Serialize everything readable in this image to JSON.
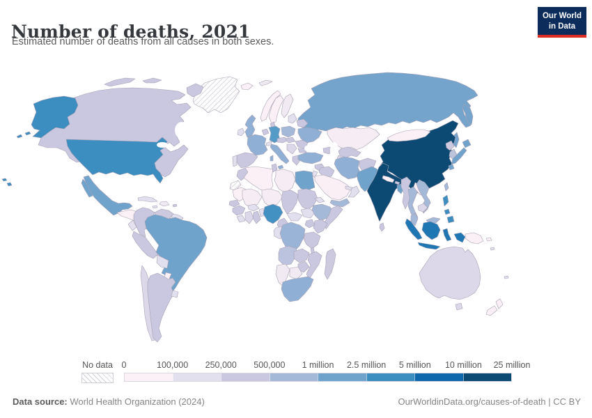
{
  "header": {
    "title": "Number of deaths, 2021",
    "subtitle": "Estimated number of deaths from all causes in both sexes.",
    "logo": {
      "line1": "Our World",
      "line2": "in Data",
      "bg_color": "#0c2d5b",
      "accent_color": "#dc2e27"
    }
  },
  "legend": {
    "no_data_label": "No data",
    "tick_labels": [
      "0",
      "100,000",
      "250,000",
      "500,000",
      "1 million",
      "2.5 million",
      "5 million",
      "10 million",
      "25 million"
    ],
    "bin_colors": [
      "#fcf1f7",
      "#e2dfee",
      "#c9c8e0",
      "#a4b8d8",
      "#6fa3cb",
      "#3d8ec0",
      "#0f68ac",
      "#0c4a74"
    ]
  },
  "footer": {
    "datasource_label": "Data source:",
    "datasource_value": " World Health Organization (2024)",
    "credit": "OurWorldinData.org/causes-of-death | CC BY"
  },
  "map": {
    "border_color": "#a79fb2",
    "ocean_color": "#ffffff",
    "region_fills": {
      "greenland": "no-data",
      "western-sahara": "no-data",
      "canada": "#c9c8e0",
      "usa": "#3d8ec0",
      "mexico": "#6fa3cb",
      "central-america": "#fbf0f6",
      "cuba": "#e2dfee",
      "hispaniola": "#efe9f2",
      "jamaica": "#e2dfee",
      "puerto-rico": "#c9c8e0",
      "colombia": "#c9c8e0",
      "venezuela": "#cdcadf",
      "guyanas": "#e2dfee",
      "ecuador": "#e6e1ee",
      "peru": "#c9c8e0",
      "brazil": "#6fa3cb",
      "bolivia": "#e2dfee",
      "paraguay": "#fbf0f6",
      "chile": "#dcd8e9",
      "argentina": "#c9c8e0",
      "uruguay": "#e2dfee",
      "iceland": "#fbf0f6",
      "svalbard": "#eee9f0",
      "norway": "#fbf0f6",
      "sweden": "#fbf0f6",
      "finland": "#f2eaf2",
      "denmark": "#c9c8e0",
      "uk": "#8fb0d4",
      "ireland": "#e2dfee",
      "benelux": "#c9c8e0",
      "germany": "#559bc8",
      "france": "#8fb0d4",
      "spain": "#c9c8e0",
      "portugal": "#e2dfee",
      "italy": "#8fb0d4",
      "switzerland": "#e2dfee",
      "austria-czech": "#c9c8e0",
      "poland": "#a4b8d8",
      "baltics": "#e2dfee",
      "belarus": "#c9c8e0",
      "ukraine": "#8fb0d4",
      "romania": "#c9c8e0",
      "hungary": "#c9c8e0",
      "balkans": "#dcd8e9",
      "greece": "#c9c8e0",
      "bulgaria": "#c9c8e0",
      "russia": "#74a4cc",
      "kazakhstan": "#f6ecf3",
      "uzbekistan": "#c9c8e0",
      "turkmenistan": "#dcd8e9",
      "caucasus": "#c9c8e0",
      "turkey": "#8fb0d4",
      "syria": "#c9c8e0",
      "iraq": "#c9c8e0",
      "jordan": "#e2dfee",
      "saudi-arabia": "#faeff5",
      "yemen": "#a4b8d8",
      "oman": "#e2dfee",
      "uae": "#e2dfee",
      "iran": "#8fb0d4",
      "afghanistan": "#c9c8e0",
      "pakistan": "#6fa3cb",
      "india": "#0c4a74",
      "nepal": "#fbf0f6",
      "bhutan": "#c9c8e0",
      "bangladesh": "#6fa3cb",
      "sri-lanka": "#c9c8e0",
      "china": "#0c4a74",
      "taiwan": "#a4b8d8",
      "mongolia": "#fbf0f6",
      "north-korea": "#cdcadf",
      "south-korea": "#bcc4dc",
      "japan": "#6fa3cb",
      "myanmar": "#c9c8e0",
      "thailand": "#a4b8d8",
      "laos": "#fbf0f6",
      "vietnam": "#a4b8d8",
      "cambodia": "#dcd8e9",
      "malaysia": "#a4b8d8",
      "philippines": "#3d8ec0",
      "indonesia": "#1e76b2",
      "timor": "#e2dfee",
      "papua-new-guinea": "#fbf0f6",
      "pacific-islands": "#e2dfee",
      "australia": "#dcd8e9",
      "new-zealand": "#fbf0f6",
      "morocco": "#c9c8e0",
      "algeria": "#fbf0f6",
      "tunisia": "#c9c8e0",
      "libya": "#f6ecf3",
      "egypt": "#6fa3cb",
      "mauritania": "#fbf0f6",
      "mali": "#f6ecf3",
      "niger": "#f6ecf3",
      "chad": "#c9c8e0",
      "sudan": "#c9c8e0",
      "eritrea": "#e2dfee",
      "senegal": "#c9c8e0",
      "guinea": "#c9c8e0",
      "sierra-leone": "#e2dfee",
      "ivory-coast": "#dcd8e9",
      "ghana": "#c9c8e0",
      "burkina-faso": "#e2dfee",
      "benin": "#e2dfee",
      "nigeria": "#4390c2",
      "cameroon": "#c9c8e0",
      "central-african-republic": "#e2dfee",
      "south-sudan": "#e2dfee",
      "ethiopia": "#a4b8d8",
      "somalia": "#c9c8e0",
      "kenya": "#c9c8e0",
      "uganda": "#c9c8e0",
      "gabon-congo": "#e2dfee",
      "drc": "#99b4d6",
      "tanzania": "#c9c8e0",
      "angola": "#bcc3de",
      "zambia": "#c9c8e0",
      "malawi": "#c9c8e0",
      "mozambique": "#c9c8e0",
      "zimbabwe": "#c9c8e0",
      "botswana": "#f2eaf2",
      "namibia": "#f2eaf2",
      "south-africa": "#8fb0d4",
      "madagascar": "#cdcadf"
    }
  },
  "chart_data": {
    "type": "choropleth",
    "title": "Number of deaths, 2021",
    "subtitle": "Estimated number of deaths from all causes in both sexes.",
    "unit": "deaths (all causes, both sexes)",
    "year": 2021,
    "bin_thresholds": [
      0,
      100000,
      250000,
      500000,
      1000000,
      2500000,
      5000000,
      10000000,
      25000000
    ],
    "bin_colors": [
      "#fcf1f7",
      "#e2dfee",
      "#c9c8e0",
      "#a4b8d8",
      "#6fa3cb",
      "#3d8ec0",
      "#0f68ac",
      "#0c4a74"
    ],
    "no_data_style": "diagonal-hatch",
    "legend_position": "bottom",
    "regions_by_bin": {
      "10 million – 25 million": [
        "China",
        "India"
      ],
      "2.5 million – 5 million": [
        "United States",
        "Indonesia"
      ],
      "1 million – 2.5 million": [
        "Russia",
        "Brazil",
        "Mexico",
        "Japan",
        "Germany",
        "Pakistan",
        "Bangladesh",
        "Egypt",
        "Nigeria",
        "Philippines"
      ],
      "500,000 – 1 million": [
        "United Kingdom",
        "France",
        "Italy",
        "Ukraine",
        "Poland",
        "Turkey",
        "Iran",
        "Thailand",
        "Vietnam",
        "Yemen",
        "Ethiopia",
        "DR Congo",
        "South Africa"
      ],
      "250,000 – 500,000": [
        "Canada",
        "Spain",
        "Argentina",
        "Colombia",
        "Peru",
        "South Korea",
        "Myanmar",
        "Afghanistan",
        "Sudan",
        "Kenya",
        "Tanzania",
        "Angola",
        "Madagascar",
        "Morocco"
      ],
      "100,000 – 250,000": [
        "Australia",
        "Chile",
        "Venezuela",
        "Cuba",
        "Kazakhstan",
        "Romania",
        "Hungary",
        "Belarus",
        "Greece",
        "Iraq",
        "Malaysia",
        "Cambodia",
        "Ghana",
        "Mozambique",
        "Zambia",
        "Zimbabwe",
        "Cameroon",
        "Somalia",
        "Uganda"
      ],
      "0 – 100,000": [
        "Norway",
        "Sweden",
        "Finland",
        "Iceland",
        "Ireland",
        "New Zealand",
        "Papua New Guinea",
        "Mongolia",
        "Laos",
        "Nepal",
        "Paraguay",
        "Saudi Arabia",
        "Libya",
        "Algeria",
        "Mali",
        "Niger",
        "Mauritania",
        "Botswana",
        "Namibia"
      ],
      "No data": [
        "Greenland",
        "Western Sahara"
      ]
    }
  }
}
